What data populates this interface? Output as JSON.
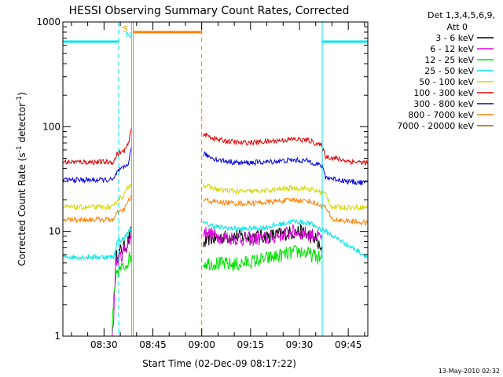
{
  "chart_data": {
    "type": "line",
    "title": "HESSI Observing Summary Count Rates, Corrected",
    "ylabel": "Corrected Count Rate (s-1 detector-1)",
    "xlabel": "Start Time (02-Dec-09 08:17:22)",
    "y_scale": "log",
    "ylim": [
      1,
      1000
    ],
    "y_ticks": [
      1,
      10,
      100,
      1000
    ],
    "y_tick_labels": [
      "1",
      "10",
      "100",
      "1000"
    ],
    "x_range": [
      "08:17:22",
      "09:51:00"
    ],
    "x_ticks": [
      "08:30",
      "08:45",
      "09:00",
      "09:15",
      "09:30",
      "09:45"
    ],
    "legend_title": [
      "Det 1,3,4,5,6,9,",
      "Att 0"
    ],
    "legend_position": "right",
    "series": [
      {
        "name": "3 - 6 keV",
        "color": "#000000",
        "segments": [
          [
            [
              "08:33:30",
              5.5
            ],
            [
              "08:35:00",
              6.5
            ],
            [
              "08:37:00",
              7.5
            ],
            [
              "08:38:30",
              10
            ]
          ],
          [
            [
              "09:00:30",
              7.5
            ],
            [
              "09:02:00",
              8.5
            ],
            [
              "09:10:00",
              9
            ],
            [
              "09:20:00",
              9
            ],
            [
              "09:30:00",
              10
            ],
            [
              "09:35:00",
              8.5
            ],
            [
              "09:37:00",
              6
            ]
          ]
        ]
      },
      {
        "name": "6 - 12 keV",
        "color": "#e000e0",
        "segments": [
          [
            [
              "08:32:30",
              1.0
            ],
            [
              "08:33:00",
              1.6
            ],
            [
              "08:33:30",
              5
            ],
            [
              "08:35:30",
              6
            ],
            [
              "08:38:30",
              9
            ]
          ],
          [
            [
              "09:00:30",
              10
            ],
            [
              "09:05:00",
              9
            ],
            [
              "09:12:00",
              8.5
            ],
            [
              "09:20:00",
              8.5
            ],
            [
              "09:28:00",
              10
            ],
            [
              "09:33:00",
              9.5
            ],
            [
              "09:37:00",
              8.5
            ]
          ]
        ]
      },
      {
        "name": "12 - 25 keV",
        "color": "#00e000",
        "segments": [
          [
            [
              "08:32:30",
              1.2
            ],
            [
              "08:33:00",
              2.2
            ],
            [
              "08:34:00",
              4.2
            ],
            [
              "08:36:00",
              4.5
            ],
            [
              "08:38:30",
              6
            ]
          ],
          [
            [
              "09:00:30",
              5
            ],
            [
              "09:02:00",
              5
            ],
            [
              "09:10:00",
              4.8
            ],
            [
              "09:20:00",
              5.5
            ],
            [
              "09:30:00",
              6.5
            ],
            [
              "09:37:00",
              5.5
            ]
          ]
        ]
      },
      {
        "name": "25 - 50 keV",
        "color": "#00e6e6",
        "segments": [
          [
            [
              "08:17:22",
              5.7
            ],
            [
              "08:33:00",
              5.7
            ],
            [
              "08:34:00",
              8
            ],
            [
              "08:36:00",
              8.5
            ],
            [
              "08:38:30",
              11
            ]
          ],
          [
            [
              "09:00:30",
              12
            ],
            [
              "09:05:00",
              11
            ],
            [
              "09:12:00",
              10.5
            ],
            [
              "09:20:00",
              11
            ],
            [
              "09:28:00",
              12.5
            ],
            [
              "09:33:00",
              12
            ],
            [
              "09:38:00",
              10
            ],
            [
              "09:51:00",
              5.7
            ]
          ]
        ]
      },
      {
        "name": "50 - 100 keV",
        "color": "#d6d600",
        "segments": [
          [
            [
              "08:17:22",
              17
            ],
            [
              "08:33:00",
              17
            ],
            [
              "08:34:00",
              20
            ],
            [
              "08:36:00",
              22
            ],
            [
              "08:38:30",
              30
            ]
          ],
          [
            [
              "09:00:30",
              28
            ],
            [
              "09:05:00",
              25
            ],
            [
              "09:12:00",
              24
            ],
            [
              "09:20:00",
              24.5
            ],
            [
              "09:28:00",
              26
            ],
            [
              "09:33:00",
              25.5
            ],
            [
              "09:38:00",
              23
            ],
            [
              "09:40:00",
              17
            ],
            [
              "09:51:00",
              17
            ]
          ]
        ]
      },
      {
        "name": "100 - 300 keV",
        "color": "#e00000",
        "segments": [
          [
            [
              "08:17:22",
              46
            ],
            [
              "08:33:00",
              46
            ],
            [
              "08:34:00",
              55
            ],
            [
              "08:36:00",
              58
            ],
            [
              "08:37:30",
              68
            ],
            [
              "08:38:30",
              100
            ]
          ],
          [
            [
              "09:00:30",
              85
            ],
            [
              "09:05:00",
              75
            ],
            [
              "09:12:00",
              70
            ],
            [
              "09:20:00",
              72
            ],
            [
              "09:28:00",
              76
            ],
            [
              "09:33:00",
              74
            ],
            [
              "09:37:00",
              65
            ],
            [
              "09:38:00",
              52
            ],
            [
              "09:45:00",
              47
            ],
            [
              "09:51:00",
              45
            ]
          ]
        ]
      },
      {
        "name": "300 - 800 keV",
        "color": "#0000dc",
        "segments": [
          [
            [
              "08:17:22",
              31
            ],
            [
              "08:33:00",
              31
            ],
            [
              "08:34:00",
              37
            ],
            [
              "08:36:00",
              40
            ],
            [
              "08:37:30",
              45
            ],
            [
              "08:38:30",
              65
            ]
          ],
          [
            [
              "09:00:30",
              55
            ],
            [
              "09:05:00",
              48
            ],
            [
              "09:12:00",
              45
            ],
            [
              "09:20:00",
              46
            ],
            [
              "09:28:00",
              48
            ],
            [
              "09:33:00",
              47
            ],
            [
              "09:37:00",
              42
            ],
            [
              "09:38:00",
              33
            ],
            [
              "09:45:00",
              30
            ],
            [
              "09:51:00",
              29
            ]
          ]
        ]
      },
      {
        "name": "800 - 7000 keV",
        "color": "#ff8000",
        "segments": [
          [
            [
              "08:17:22",
              13
            ],
            [
              "08:33:00",
              13
            ],
            [
              "08:34:00",
              15
            ],
            [
              "08:36:00",
              16
            ],
            [
              "08:38:30",
              22
            ]
          ],
          [
            [
              "09:00:30",
              20
            ],
            [
              "09:05:00",
              19
            ],
            [
              "09:12:00",
              18.5
            ],
            [
              "09:20:00",
              19
            ],
            [
              "09:28:00",
              20
            ],
            [
              "09:33:00",
              19.5
            ],
            [
              "09:38:00",
              17
            ],
            [
              "09:40:00",
              13
            ],
            [
              "09:51:00",
              12
            ]
          ]
        ]
      },
      {
        "name": "7000 - 20000 keV",
        "color": "#a06000",
        "segments": []
      }
    ],
    "flags": [
      {
        "label": "S",
        "time": "08:36:30",
        "color": "#c8a000"
      },
      {
        "label": "N",
        "time": "08:37:30",
        "color": "#00e6e6"
      }
    ],
    "attenuator_bar": {
      "start": "08:39:00",
      "end": "09:00:00",
      "y": 800,
      "color": "#ff8000"
    },
    "saa_bars": [
      {
        "start": "08:17:22",
        "end": "08:34:30",
        "y": 650,
        "color": "#00e6e6"
      },
      {
        "start": "09:37:00",
        "end": "09:51:00",
        "y": 650,
        "color": "#00e6e6"
      }
    ],
    "vlines": [
      {
        "time": "08:17:22",
        "color": "#00e6e6",
        "style": "solid"
      },
      {
        "time": "08:34:30",
        "color": "#00e6e6",
        "style": "dashed"
      },
      {
        "time": "08:38:30",
        "color": "#00e6e6",
        "style": "solid"
      },
      {
        "time": "08:39:00",
        "color": "#ff8000",
        "style": "solid"
      },
      {
        "time": "09:00:00",
        "color": "#ff8000",
        "style": "dashed"
      },
      {
        "time": "09:37:00",
        "color": "#00e6e6",
        "style": "solid"
      },
      {
        "time": "09:51:00",
        "color": "#00e6e6",
        "style": "dashed"
      }
    ],
    "grid": false
  },
  "footer": {
    "timestamp": "13-May-2010 02:32"
  }
}
